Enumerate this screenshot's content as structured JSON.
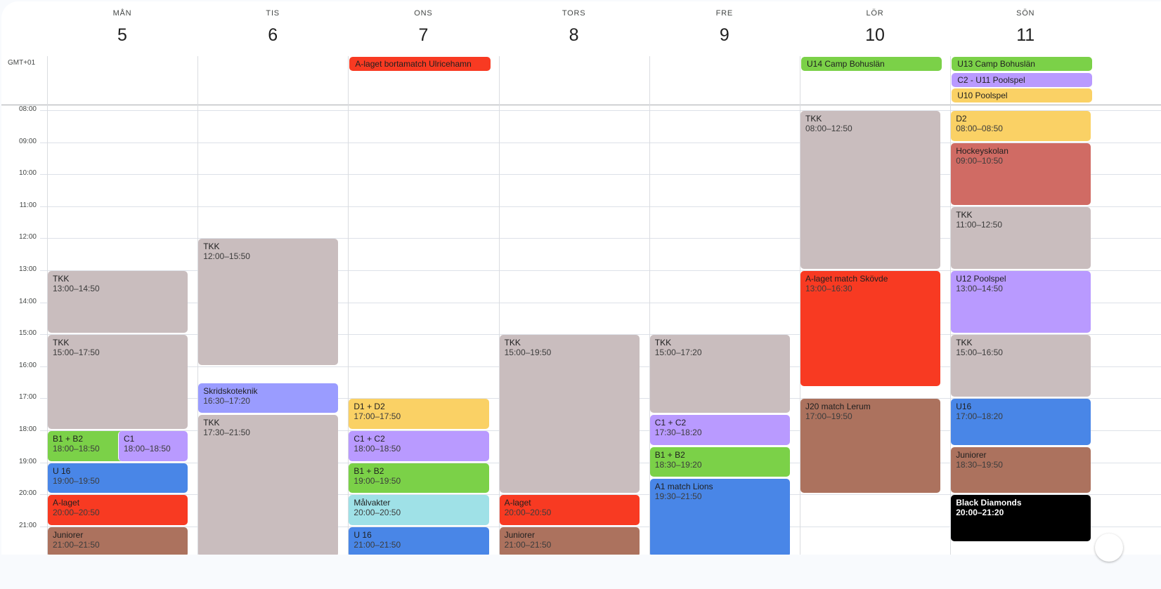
{
  "timezone_label": "GMT+01",
  "hours": [
    "08:00",
    "09:00",
    "10:00",
    "11:00",
    "12:00",
    "13:00",
    "14:00",
    "15:00",
    "16:00",
    "17:00",
    "18:00",
    "19:00",
    "20:00",
    "21:00"
  ],
  "colors": {
    "grey": "#c9bdbe",
    "red": "#f83a22",
    "green": "#7bd148",
    "purple": "#b99aff",
    "blue": "#4986e7",
    "brown": "#ac725e",
    "yellow": "#fad165",
    "teal": "#9fe1e7",
    "periwinkle": "#9a9cff",
    "salmon": "#d06b64",
    "black": "#000000"
  },
  "days": [
    {
      "name": "MÅN",
      "date": "5",
      "allday": [],
      "events": [
        {
          "title": "TKK",
          "time": "13:00–14:50",
          "color": "grey"
        },
        {
          "title": "TKK",
          "time": "15:00–17:50",
          "color": "grey"
        },
        {
          "title": "B1 + B2",
          "time": "18:00–18:50",
          "color": "green",
          "split": "left"
        },
        {
          "title": "C1",
          "time": "18:00–18:50",
          "color": "purple",
          "split": "right"
        },
        {
          "title": "U 16",
          "time": "19:00–19:50",
          "color": "blue"
        },
        {
          "title": "A-laget",
          "time": "20:00–20:50",
          "color": "red"
        },
        {
          "title": "Juniorer",
          "time": "21:00–21:50",
          "color": "brown"
        }
      ]
    },
    {
      "name": "TIS",
      "date": "6",
      "allday": [],
      "events": [
        {
          "title": "TKK",
          "time": "12:00–15:50",
          "color": "grey"
        },
        {
          "title": "Skridskoteknik",
          "time": "16:30–17:20",
          "color": "periwinkle"
        },
        {
          "title": "TKK",
          "time": "17:30–21:50",
          "color": "grey"
        }
      ]
    },
    {
      "name": "ONS",
      "date": "7",
      "allday": [
        {
          "title": "A-laget bortamatch Ulricehamn",
          "color": "red"
        }
      ],
      "events": [
        {
          "title": "D1 + D2",
          "time": "17:00–17:50",
          "color": "yellow"
        },
        {
          "title": "C1 + C2",
          "time": "18:00–18:50",
          "color": "purple"
        },
        {
          "title": "B1 + B2",
          "time": "19:00–19:50",
          "color": "green"
        },
        {
          "title": "Målvakter",
          "time": "20:00–20:50",
          "color": "teal"
        },
        {
          "title": "U 16",
          "time": "21:00–21:50",
          "color": "blue"
        }
      ]
    },
    {
      "name": "TORS",
      "date": "8",
      "allday": [],
      "events": [
        {
          "title": "TKK",
          "time": "15:00–19:50",
          "color": "grey"
        },
        {
          "title": "A-laget",
          "time": "20:00–20:50",
          "color": "red"
        },
        {
          "title": "Juniorer",
          "time": "21:00–21:50",
          "color": "brown"
        }
      ]
    },
    {
      "name": "FRE",
      "date": "9",
      "allday": [],
      "events": [
        {
          "title": "TKK",
          "time": "15:00–17:20",
          "color": "grey"
        },
        {
          "title": "C1 + C2",
          "time": "17:30–18:20",
          "color": "purple"
        },
        {
          "title": "B1 + B2",
          "time": "18:30–19:20",
          "color": "green"
        },
        {
          "title": "A1 match Lions",
          "time": "19:30–21:50",
          "color": "blue"
        }
      ]
    },
    {
      "name": "LÖR",
      "date": "10",
      "allday": [
        {
          "title": "U14 Camp Bohuslän",
          "color": "green"
        }
      ],
      "events": [
        {
          "title": "TKK",
          "time": "08:00–12:50",
          "color": "grey"
        },
        {
          "title": "A-laget match Skövde",
          "time": "13:00–16:30",
          "color": "red"
        },
        {
          "title": "J20 match Lerum",
          "time": "17:00–19:50",
          "color": "brown"
        }
      ]
    },
    {
      "name": "SÖN",
      "date": "11",
      "allday": [
        {
          "title": "U13 Camp Bohuslän",
          "color": "green"
        },
        {
          "title": "C2 - U11 Poolspel",
          "color": "purple"
        },
        {
          "title": "U10 Poolspel",
          "color": "yellow"
        }
      ],
      "events": [
        {
          "title": "D2",
          "time": "08:00–08:50",
          "color": "yellow"
        },
        {
          "title": "Hockeyskolan",
          "time": "09:00–10:50",
          "color": "salmon"
        },
        {
          "title": "TKK",
          "time": "11:00–12:50",
          "color": "grey"
        },
        {
          "title": "U12 Poolspel",
          "time": "13:00–14:50",
          "color": "purple"
        },
        {
          "title": "TKK",
          "time": "15:00–16:50",
          "color": "grey"
        },
        {
          "title": "U16",
          "time": "17:00–18:20",
          "color": "blue"
        },
        {
          "title": "Juniorer",
          "time": "18:30–19:50",
          "color": "brown"
        },
        {
          "title": "Black Diamonds",
          "time": "20:00–21:20",
          "color": "black"
        }
      ]
    }
  ]
}
